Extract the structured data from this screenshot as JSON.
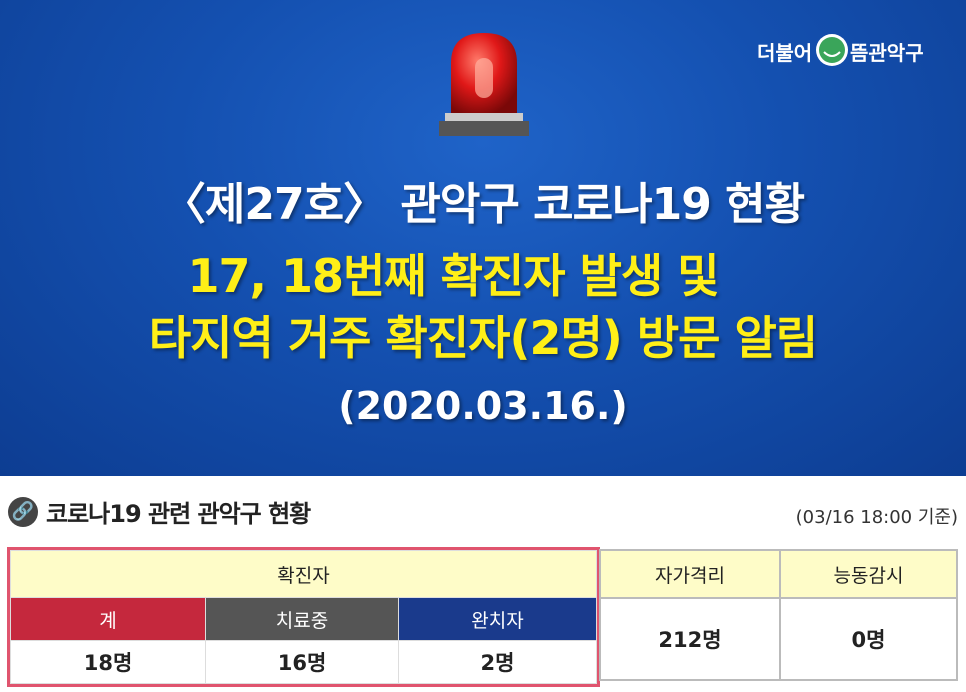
{
  "banner": {
    "logo_text": "더불어 으뜸 관악구",
    "title": "〈제27호〉 관악구 코로나19 현황",
    "headline_1": "17, 18번째 확진자 발생 및",
    "headline_2": "타지역 거주 확진자(2명) 방문 알림",
    "date": "(2020.03.16.)",
    "icon": "siren-icon"
  },
  "section": {
    "icon": "link-icon",
    "title": "코로나19 관련 관악구 현황",
    "basis": "(03/16 18:00 기준)"
  },
  "table": {
    "confirmed_header": "확진자",
    "cols": [
      {
        "label": "계",
        "value": "18명"
      },
      {
        "label": "치료중",
        "value": "16명"
      },
      {
        "label": "완치자",
        "value": "2명"
      }
    ],
    "self_quarantine": {
      "label": "자가격리",
      "value": "212명"
    },
    "active_monitoring": {
      "label": "능동감시",
      "value": "0명"
    }
  },
  "colors": {
    "total": "#c5283d",
    "treating": "#555555",
    "recovered": "#1a3a8c",
    "header": "#fefcc8",
    "highlight": "#e0546e"
  }
}
